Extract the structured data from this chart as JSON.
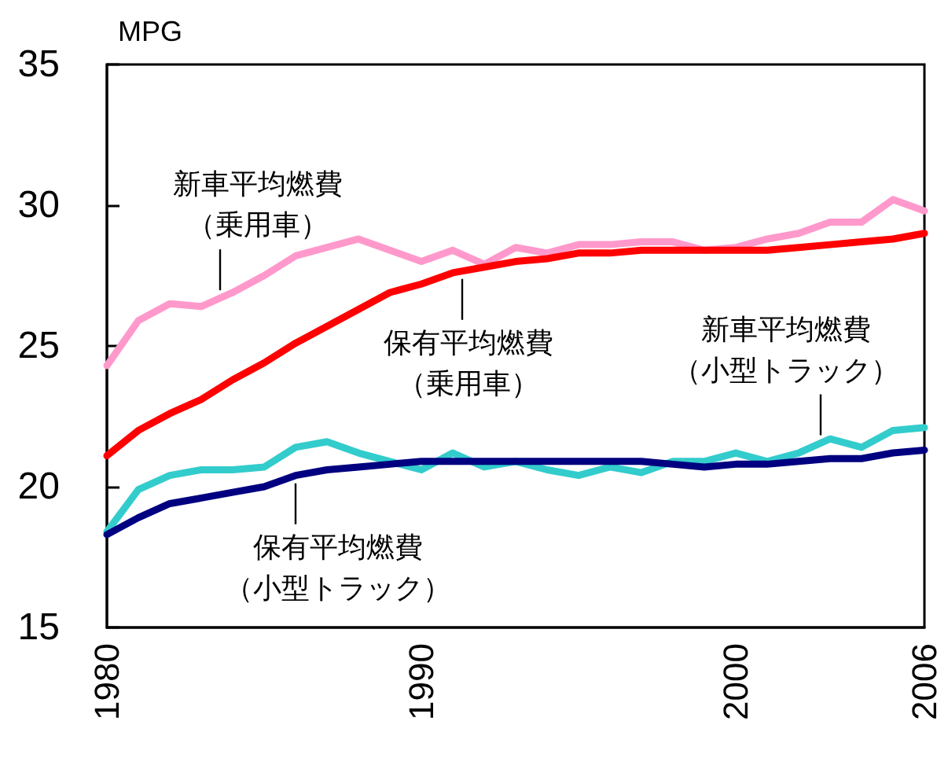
{
  "chart_data": {
    "type": "line",
    "ylabel": "MPG",
    "x": [
      1980,
      1981,
      1982,
      1983,
      1984,
      1985,
      1986,
      1987,
      1988,
      1989,
      1990,
      1991,
      1992,
      1993,
      1994,
      1995,
      1996,
      1997,
      1998,
      1999,
      2000,
      2001,
      2002,
      2003,
      2004,
      2005,
      2006
    ],
    "xlim": [
      1980,
      2006
    ],
    "xticks": [
      1980,
      1990,
      2000,
      2006
    ],
    "ylim": [
      15,
      35
    ],
    "yticks": [
      15,
      20,
      25,
      30,
      35
    ],
    "grid": false,
    "legend": false,
    "series": [
      {
        "name": "新車平均燃費（乗用車）",
        "color": "#ff99cc",
        "values": [
          24.3,
          25.9,
          26.5,
          26.4,
          26.9,
          27.5,
          28.2,
          28.5,
          28.8,
          28.4,
          28.0,
          28.4,
          27.9,
          28.5,
          28.3,
          28.6,
          28.6,
          28.7,
          28.7,
          28.4,
          28.5,
          28.8,
          29.0,
          29.4,
          29.4,
          30.2,
          29.8
        ]
      },
      {
        "name": "保有平均燃費（乗用車）",
        "color": "#ff0000",
        "values": [
          21.1,
          22.0,
          22.6,
          23.1,
          23.8,
          24.4,
          25.1,
          25.7,
          26.3,
          26.9,
          27.2,
          27.6,
          27.8,
          28.0,
          28.1,
          28.3,
          28.3,
          28.4,
          28.4,
          28.4,
          28.4,
          28.4,
          28.5,
          28.6,
          28.7,
          28.8,
          29.0
        ]
      },
      {
        "name": "新車平均燃費（小型トラック）",
        "color": "#33cccc",
        "values": [
          18.4,
          19.9,
          20.4,
          20.6,
          20.6,
          20.7,
          21.4,
          21.6,
          21.2,
          20.9,
          20.6,
          21.2,
          20.7,
          20.9,
          20.6,
          20.4,
          20.7,
          20.5,
          20.9,
          20.9,
          21.2,
          20.9,
          21.2,
          21.7,
          21.4,
          22.0,
          22.1
        ]
      },
      {
        "name": "保有平均燃費（小型トラック）",
        "color": "#000080",
        "values": [
          18.3,
          18.9,
          19.4,
          19.6,
          19.8,
          20.0,
          20.4,
          20.6,
          20.7,
          20.8,
          20.9,
          20.9,
          20.9,
          20.9,
          20.9,
          20.9,
          20.9,
          20.9,
          20.8,
          20.7,
          20.8,
          20.8,
          20.9,
          21.0,
          21.0,
          21.2,
          21.3
        ]
      }
    ]
  }
}
